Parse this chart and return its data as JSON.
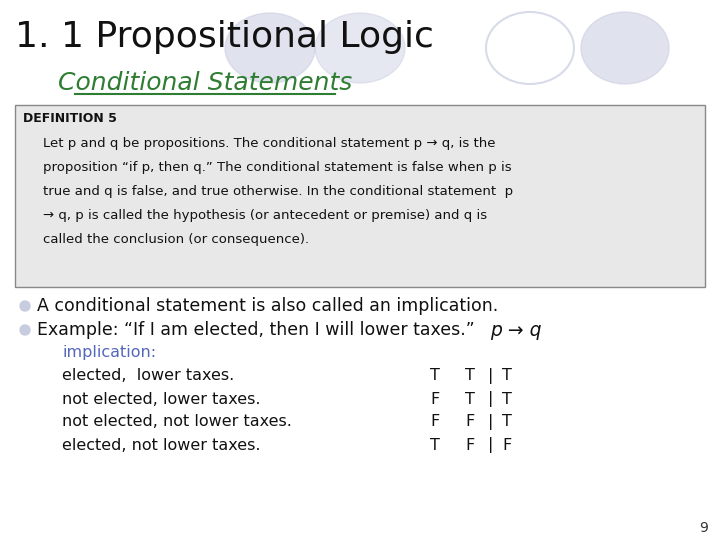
{
  "title": "1. 1 Propositional Logic",
  "subtitle": "Conditional Statements",
  "subtitle_color": "#2e7d32",
  "bg_color": "#ffffff",
  "def_box_color": "#e8e8e8",
  "def_box_border": "#888888",
  "definition_label": "DEFINITION 5",
  "definition_text_lines": [
    "Let p and q be propositions. The conditional statement p → q, is the",
    "proposition “if p, then q.” The conditional statement is false when p is",
    "true and q is false, and true otherwise. In the conditional statement  p",
    "→ q, p is called the hypothesis (or antecedent or premise) and q is",
    "called the conclusion (or consequence)."
  ],
  "bullet_color": "#c8cce0",
  "bullet1": "A conditional statement is also called an implication.",
  "bullet2": "Example: “If I am elected, then I will lower taxes.”",
  "bullet2_formula": "p → q",
  "implication_label": "implication:",
  "implication_color": "#5566bb",
  "table_rows": [
    {
      "scenario": "elected,  lower taxes.",
      "p": "T",
      "q": "T",
      "result": "T"
    },
    {
      "scenario": "not elected, lower taxes.",
      "p": "F",
      "q": "T",
      "result": "T"
    },
    {
      "scenario": "not elected, not lower taxes.",
      "p": "F",
      "q": "F",
      "result": "T"
    },
    {
      "scenario": "elected, not lower taxes.",
      "p": "T",
      "q": "F",
      "result": "F"
    }
  ],
  "ellipse_filled_color": "#c8cce0",
  "ellipse_outline_color": "#c8cce0",
  "page_number": "9",
  "title_fontsize": 26,
  "subtitle_fontsize": 18,
  "def_label_fontsize": 9,
  "def_text_fontsize": 9.5,
  "bullet_fontsize": 12.5,
  "table_fontsize": 11.5
}
